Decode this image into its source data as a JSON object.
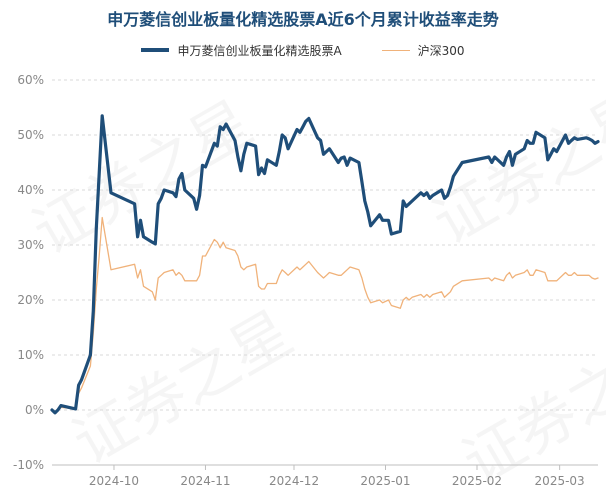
{
  "title": "申万菱信创业板量化精选股票A近6个月累计收益率走势",
  "watermark": "证券之星",
  "colors": {
    "fund": "#1f4e79",
    "index": "#f0b27a",
    "grid": "#d9d9d9",
    "axis": "#888888"
  },
  "chart_data": {
    "type": "line",
    "title": "申万菱信创业板量化精选股票A近6个月累计收益率走势",
    "xlabel": "",
    "ylabel": "",
    "ylim": [
      -10,
      60
    ],
    "yticks": [
      -10,
      0,
      10,
      20,
      30,
      40,
      50,
      60
    ],
    "ytick_labels": [
      "-10%",
      "0%",
      "10%",
      "20%",
      "30%",
      "40%",
      "50%",
      "60%"
    ],
    "xlim": [
      "2024-09-10",
      "2025-03-14"
    ],
    "xtick_positions": [
      "2024-10-01",
      "2024-11-01",
      "2024-12-01",
      "2025-01-01",
      "2025-02-01",
      "2025-03-01"
    ],
    "xtick_labels": [
      "2024-10",
      "2024-11",
      "2024-12",
      "2025-01",
      "2025-02",
      "2025-03"
    ],
    "grid": "horizontal",
    "legend_position": "top-center",
    "series": [
      {
        "name": "申万菱信创业板量化精选股票A",
        "points": [
          [
            "2024-09-10",
            0
          ],
          [
            "2024-09-11",
            -0.5
          ],
          [
            "2024-09-12",
            0
          ],
          [
            "2024-09-13",
            0.8
          ],
          [
            "2024-09-18",
            0.2
          ],
          [
            "2024-09-19",
            4.5
          ],
          [
            "2024-09-20",
            5.5
          ],
          [
            "2024-09-23",
            10
          ],
          [
            "2024-09-24",
            18
          ],
          [
            "2024-09-25",
            33
          ],
          [
            "2024-09-26",
            43
          ],
          [
            "2024-09-27",
            53.5
          ],
          [
            "2024-09-30",
            39.5
          ],
          [
            "2024-10-08",
            37.5
          ],
          [
            "2024-10-09",
            31.5
          ],
          [
            "2024-10-10",
            34.5
          ],
          [
            "2024-10-11",
            31.5
          ],
          [
            "2024-10-14",
            30.5
          ],
          [
            "2024-10-15",
            30.2
          ],
          [
            "2024-10-16",
            37.5
          ],
          [
            "2024-10-17",
            38.5
          ],
          [
            "2024-10-18",
            40
          ],
          [
            "2024-10-21",
            39.5
          ],
          [
            "2024-10-22",
            38.8
          ],
          [
            "2024-10-23",
            42
          ],
          [
            "2024-10-24",
            43
          ],
          [
            "2024-10-25",
            40
          ],
          [
            "2024-10-28",
            38.5
          ],
          [
            "2024-10-29",
            36.5
          ],
          [
            "2024-10-30",
            39
          ],
          [
            "2024-10-31",
            44.5
          ],
          [
            "2024-11-01",
            44.2
          ],
          [
            "2024-11-04",
            48.5
          ],
          [
            "2024-11-05",
            48
          ],
          [
            "2024-11-06",
            51.5
          ],
          [
            "2024-11-07",
            51
          ],
          [
            "2024-11-08",
            52
          ],
          [
            "2024-11-11",
            49
          ],
          [
            "2024-11-12",
            46
          ],
          [
            "2024-11-13",
            43.5
          ],
          [
            "2024-11-14",
            46.5
          ],
          [
            "2024-11-15",
            48.5
          ],
          [
            "2024-11-18",
            48
          ],
          [
            "2024-11-19",
            42.8
          ],
          [
            "2024-11-20",
            44
          ],
          [
            "2024-11-21",
            43
          ],
          [
            "2024-11-22",
            45.5
          ],
          [
            "2024-11-25",
            44.5
          ],
          [
            "2024-11-26",
            47
          ],
          [
            "2024-11-27",
            50
          ],
          [
            "2024-11-28",
            49.5
          ],
          [
            "2024-11-29",
            47.5
          ],
          [
            "2024-12-02",
            51
          ],
          [
            "2024-12-03",
            50.5
          ],
          [
            "2024-12-04",
            51.5
          ],
          [
            "2024-12-05",
            52.5
          ],
          [
            "2024-12-06",
            53
          ],
          [
            "2024-12-09",
            49.5
          ],
          [
            "2024-12-10",
            49
          ],
          [
            "2024-12-11",
            46.5
          ],
          [
            "2024-12-12",
            47
          ],
          [
            "2024-12-13",
            47.5
          ],
          [
            "2024-12-16",
            45
          ],
          [
            "2024-12-17",
            45.8
          ],
          [
            "2024-12-18",
            46
          ],
          [
            "2024-12-19",
            44.5
          ],
          [
            "2024-12-20",
            45.8
          ],
          [
            "2024-12-23",
            45
          ],
          [
            "2024-12-24",
            41.5
          ],
          [
            "2024-12-25",
            38
          ],
          [
            "2024-12-26",
            36
          ],
          [
            "2024-12-27",
            33.5
          ],
          [
            "2024-12-30",
            35.5
          ],
          [
            "2024-12-31",
            34.5
          ],
          [
            "2025-01-02",
            34.5
          ],
          [
            "2025-01-03",
            32
          ],
          [
            "2025-01-06",
            32.5
          ],
          [
            "2025-01-07",
            38
          ],
          [
            "2025-01-08",
            37
          ],
          [
            "2025-01-09",
            37.5
          ],
          [
            "2025-01-10",
            38
          ],
          [
            "2025-01-13",
            39.5
          ],
          [
            "2025-01-14",
            39
          ],
          [
            "2025-01-15",
            39.5
          ],
          [
            "2025-01-16",
            38.5
          ],
          [
            "2025-01-17",
            39
          ],
          [
            "2025-01-20",
            40
          ],
          [
            "2025-01-21",
            38.5
          ],
          [
            "2025-01-22",
            39
          ],
          [
            "2025-01-23",
            40.5
          ],
          [
            "2025-01-24",
            42.5
          ],
          [
            "2025-01-27",
            45
          ],
          [
            "2025-02-05",
            46
          ],
          [
            "2025-02-06",
            45
          ],
          [
            "2025-02-07",
            46
          ],
          [
            "2025-02-10",
            44.5
          ],
          [
            "2025-02-11",
            46
          ],
          [
            "2025-02-12",
            47
          ],
          [
            "2025-02-13",
            44.5
          ],
          [
            "2025-02-14",
            46.5
          ],
          [
            "2025-02-17",
            47.5
          ],
          [
            "2025-02-18",
            49
          ],
          [
            "2025-02-19",
            48.5
          ],
          [
            "2025-02-20",
            48.5
          ],
          [
            "2025-02-21",
            50.5
          ],
          [
            "2025-02-24",
            49.5
          ],
          [
            "2025-02-25",
            45.5
          ],
          [
            "2025-02-26",
            46.5
          ],
          [
            "2025-02-27",
            47.5
          ],
          [
            "2025-02-28",
            47
          ],
          [
            "2025-03-03",
            50
          ],
          [
            "2025-03-04",
            48.5
          ],
          [
            "2025-03-05",
            49
          ],
          [
            "2025-03-06",
            49.5
          ],
          [
            "2025-03-07",
            49.2
          ],
          [
            "2025-03-10",
            49.5
          ],
          [
            "2025-03-11",
            49.3
          ],
          [
            "2025-03-12",
            49
          ],
          [
            "2025-03-13",
            48.5
          ],
          [
            "2025-03-14",
            48.8
          ]
        ]
      },
      {
        "name": "沪深300",
        "points": [
          [
            "2024-09-10",
            0
          ],
          [
            "2024-09-11",
            -0.3
          ],
          [
            "2024-09-12",
            0
          ],
          [
            "2024-09-13",
            0.5
          ],
          [
            "2024-09-18",
            0.2
          ],
          [
            "2024-09-19",
            3
          ],
          [
            "2024-09-20",
            4
          ],
          [
            "2024-09-23",
            8
          ],
          [
            "2024-09-24",
            14
          ],
          [
            "2024-09-25",
            22
          ],
          [
            "2024-09-26",
            28
          ],
          [
            "2024-09-27",
            35
          ],
          [
            "2024-09-30",
            25.5
          ],
          [
            "2024-10-08",
            26.5
          ],
          [
            "2024-10-09",
            24
          ],
          [
            "2024-10-10",
            25.5
          ],
          [
            "2024-10-11",
            22.5
          ],
          [
            "2024-10-14",
            21.5
          ],
          [
            "2024-10-15",
            20
          ],
          [
            "2024-10-16",
            24
          ],
          [
            "2024-10-17",
            24.5
          ],
          [
            "2024-10-18",
            25
          ],
          [
            "2024-10-21",
            25.5
          ],
          [
            "2024-10-22",
            24.5
          ],
          [
            "2024-10-23",
            25
          ],
          [
            "2024-10-24",
            24.5
          ],
          [
            "2024-10-25",
            23.5
          ],
          [
            "2024-10-28",
            23.5
          ],
          [
            "2024-10-29",
            23.5
          ],
          [
            "2024-10-30",
            24.5
          ],
          [
            "2024-10-31",
            28
          ],
          [
            "2024-11-01",
            28
          ],
          [
            "2024-11-04",
            31
          ],
          [
            "2024-11-05",
            30.5
          ],
          [
            "2024-11-06",
            29.5
          ],
          [
            "2024-11-07",
            30.5
          ],
          [
            "2024-11-08",
            29.5
          ],
          [
            "2024-11-11",
            29
          ],
          [
            "2024-11-12",
            28
          ],
          [
            "2024-11-13",
            26
          ],
          [
            "2024-11-14",
            25.5
          ],
          [
            "2024-11-15",
            26
          ],
          [
            "2024-11-18",
            26.5
          ],
          [
            "2024-11-19",
            22.5
          ],
          [
            "2024-11-20",
            22
          ],
          [
            "2024-11-21",
            22
          ],
          [
            "2024-11-22",
            23
          ],
          [
            "2024-11-25",
            23
          ],
          [
            "2024-11-26",
            24.5
          ],
          [
            "2024-11-27",
            25.5
          ],
          [
            "2024-11-28",
            25
          ],
          [
            "2024-11-29",
            24.5
          ],
          [
            "2024-12-02",
            26
          ],
          [
            "2024-12-03",
            25.5
          ],
          [
            "2024-12-04",
            26
          ],
          [
            "2024-12-05",
            26.5
          ],
          [
            "2024-12-06",
            27
          ],
          [
            "2024-12-09",
            25
          ],
          [
            "2024-12-10",
            24.5
          ],
          [
            "2024-12-11",
            24
          ],
          [
            "2024-12-12",
            24.5
          ],
          [
            "2024-12-13",
            25
          ],
          [
            "2024-12-16",
            24.5
          ],
          [
            "2024-12-17",
            24.5
          ],
          [
            "2024-12-18",
            25
          ],
          [
            "2024-12-19",
            25.5
          ],
          [
            "2024-12-20",
            26
          ],
          [
            "2024-12-23",
            25.5
          ],
          [
            "2024-12-24",
            24
          ],
          [
            "2024-12-25",
            22
          ],
          [
            "2024-12-26",
            20.5
          ],
          [
            "2024-12-27",
            19.5
          ],
          [
            "2024-12-30",
            20
          ],
          [
            "2024-12-31",
            19.5
          ],
          [
            "2025-01-02",
            20
          ],
          [
            "2025-01-03",
            19
          ],
          [
            "2025-01-06",
            18.5
          ],
          [
            "2025-01-07",
            20
          ],
          [
            "2025-01-08",
            20.5
          ],
          [
            "2025-01-09",
            20
          ],
          [
            "2025-01-10",
            20.5
          ],
          [
            "2025-01-13",
            21
          ],
          [
            "2025-01-14",
            20.5
          ],
          [
            "2025-01-15",
            21
          ],
          [
            "2025-01-16",
            20.5
          ],
          [
            "2025-01-17",
            21
          ],
          [
            "2025-01-20",
            21.5
          ],
          [
            "2025-01-21",
            20.5
          ],
          [
            "2025-01-22",
            21
          ],
          [
            "2025-01-23",
            21.5
          ],
          [
            "2025-01-24",
            22.5
          ],
          [
            "2025-01-27",
            23.5
          ],
          [
            "2025-02-05",
            24
          ],
          [
            "2025-02-06",
            23.5
          ],
          [
            "2025-02-07",
            24
          ],
          [
            "2025-02-10",
            23.5
          ],
          [
            "2025-02-11",
            24.5
          ],
          [
            "2025-02-12",
            25
          ],
          [
            "2025-02-13",
            24
          ],
          [
            "2025-02-14",
            24.5
          ],
          [
            "2025-02-17",
            25
          ],
          [
            "2025-02-18",
            25.5
          ],
          [
            "2025-02-19",
            24.5
          ],
          [
            "2025-02-20",
            24.5
          ],
          [
            "2025-02-21",
            25.5
          ],
          [
            "2025-02-24",
            25
          ],
          [
            "2025-02-25",
            23.5
          ],
          [
            "2025-02-26",
            23.5
          ],
          [
            "2025-02-27",
            23.5
          ],
          [
            "2025-02-28",
            23.5
          ],
          [
            "2025-03-03",
            25
          ],
          [
            "2025-03-04",
            24.5
          ],
          [
            "2025-03-05",
            24.5
          ],
          [
            "2025-03-06",
            25
          ],
          [
            "2025-03-07",
            24.5
          ],
          [
            "2025-03-10",
            24.5
          ],
          [
            "2025-03-11",
            24.5
          ],
          [
            "2025-03-12",
            24
          ],
          [
            "2025-03-13",
            23.8
          ],
          [
            "2025-03-14",
            24
          ]
        ]
      }
    ]
  }
}
